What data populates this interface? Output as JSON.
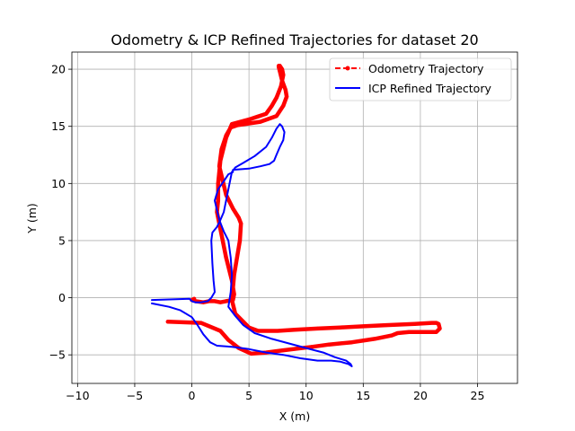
{
  "chart_data": {
    "type": "line",
    "title": "Odometry & ICP Refined Trajectories for dataset 20",
    "xlabel": "X (m)",
    "ylabel": "Y (m)",
    "xlim": [
      -10.5,
      28.5
    ],
    "ylim": [
      -7.5,
      21.5
    ],
    "xticks": [
      -10,
      -5,
      0,
      5,
      10,
      15,
      20,
      25
    ],
    "yticks": [
      -5,
      0,
      5,
      10,
      15,
      20
    ],
    "grid": true,
    "legend_position": "top-right",
    "series": [
      {
        "name": "Odometry Trajectory",
        "color": "#ff0000",
        "line_style": "dashed",
        "marker": "dot",
        "x": [
          -2.1,
          0.8,
          2.5,
          3.2,
          4.1,
          5.2,
          6.5,
          8.0,
          10.5,
          12.0,
          14.0,
          16.0,
          17.5,
          18.0,
          19.0,
          21.4,
          21.7,
          21.6,
          21.4,
          21.0,
          19.5,
          17.0,
          15.0,
          13.0,
          11.0,
          9.0,
          7.5,
          5.8,
          5.0,
          4.5,
          3.8,
          3.5,
          3.7,
          4.2,
          4.3,
          4.1,
          3.6,
          3.0,
          2.4,
          2.6,
          3.0,
          3.4,
          4.0,
          6.0,
          7.4,
          8.0,
          8.3,
          8.2,
          7.9,
          7.7,
          7.6,
          7.6,
          7.7,
          7.9,
          8.0,
          7.8,
          7.4,
          7.0,
          6.5,
          5.0,
          3.5,
          3.0,
          2.5,
          2.3,
          2.3,
          2.2,
          2.6,
          3.0,
          3.5,
          3.7,
          3.6,
          3.0,
          2.5,
          2.0,
          1.5,
          1.0,
          0.3,
          0.0,
          0.2
        ],
        "y": [
          -2.1,
          -2.2,
          -2.9,
          -3.7,
          -4.4,
          -4.9,
          -4.8,
          -4.6,
          -4.3,
          -4.1,
          -3.9,
          -3.6,
          -3.3,
          -3.1,
          -3.0,
          -3.0,
          -2.7,
          -2.3,
          -2.2,
          -2.2,
          -2.3,
          -2.4,
          -2.5,
          -2.6,
          -2.7,
          -2.8,
          -2.9,
          -2.9,
          -2.6,
          -2.1,
          -1.4,
          -0.2,
          2.0,
          5.0,
          6.5,
          7.0,
          7.8,
          9.0,
          11.5,
          13.0,
          14.2,
          14.9,
          15.1,
          15.4,
          15.9,
          16.8,
          17.6,
          18.2,
          19.0,
          19.8,
          20.2,
          20.3,
          20.3,
          20.0,
          19.5,
          18.5,
          17.5,
          16.8,
          16.1,
          15.6,
          15.2,
          14.0,
          12.0,
          10.0,
          8.5,
          7.5,
          5.5,
          3.5,
          1.5,
          0.3,
          -0.2,
          -0.3,
          -0.4,
          -0.3,
          -0.3,
          -0.4,
          -0.3,
          -0.2,
          -0.1
        ]
      },
      {
        "name": "ICP Refined Trajectory",
        "color": "#0000ff",
        "line_style": "solid",
        "marker": "none",
        "x": [
          -3.5,
          -2.0,
          -1.0,
          0.0,
          0.5,
          1.0,
          1.6,
          2.2,
          3.5,
          5.0,
          6.5,
          8.0,
          9.5,
          11.0,
          12.2,
          13.0,
          13.7,
          14.0,
          13.9,
          13.5,
          12.5,
          11.5,
          10.0,
          8.5,
          7.0,
          5.5,
          4.5,
          3.8,
          3.2,
          3.4,
          3.5,
          3.4,
          3.2,
          2.8,
          2.4,
          2.0,
          2.3,
          2.8,
          3.2,
          3.6,
          3.6,
          5.0,
          6.0,
          6.8,
          7.2,
          7.4,
          7.7,
          8.0,
          8.1,
          7.9,
          7.7,
          7.4,
          7.0,
          6.5,
          5.5,
          4.5,
          3.8,
          3.5,
          3.2,
          2.8,
          2.5,
          2.2,
          1.8,
          1.7,
          1.8,
          1.9,
          2.0,
          1.7,
          1.4,
          0.8,
          0.3,
          0.0,
          -0.2,
          -3.5
        ],
        "y": [
          -0.5,
          -0.8,
          -1.1,
          -1.7,
          -2.4,
          -3.2,
          -3.9,
          -4.2,
          -4.3,
          -4.5,
          -4.8,
          -5.0,
          -5.3,
          -5.5,
          -5.5,
          -5.6,
          -5.8,
          -6.0,
          -5.8,
          -5.5,
          -5.2,
          -4.8,
          -4.4,
          -4.0,
          -3.6,
          -3.1,
          -2.4,
          -1.6,
          -0.8,
          0.5,
          2.0,
          3.5,
          5.0,
          5.8,
          6.8,
          8.5,
          9.5,
          10.2,
          10.8,
          11.0,
          11.2,
          11.3,
          11.5,
          11.7,
          12.0,
          12.5,
          13.2,
          13.8,
          14.5,
          15.0,
          15.2,
          14.8,
          14.0,
          13.2,
          12.4,
          11.8,
          11.4,
          11.0,
          9.5,
          7.5,
          6.8,
          6.2,
          5.7,
          5.0,
          3.0,
          1.5,
          0.5,
          0.0,
          -0.3,
          -0.4,
          -0.4,
          -0.3,
          -0.1,
          -0.2
        ]
      }
    ]
  }
}
